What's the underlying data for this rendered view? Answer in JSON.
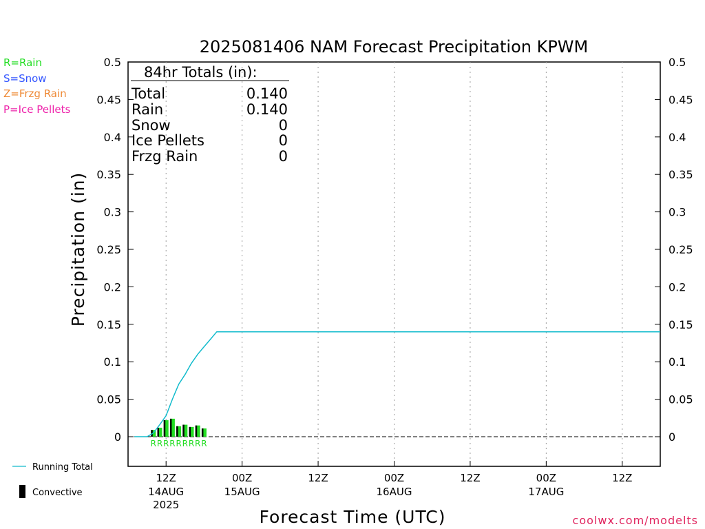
{
  "chart_data": {
    "type": "bar",
    "title": "2025081406 NAM Forecast Precipitation KPWM",
    "xlabel": "Forecast Time (UTC)",
    "ylabel": "Precipitation (in)",
    "ylim": [
      -0.04,
      0.5
    ],
    "y_ticks": [
      "0.5",
      "0.45",
      "0.4",
      "0.35",
      "0.3",
      "0.25",
      "0.2",
      "0.15",
      "0.1",
      "0.05",
      "0"
    ],
    "x_ticks": [
      {
        "label": "12Z",
        "date": "14AUG",
        "year": "2025",
        "hour": 12
      },
      {
        "label": "00Z",
        "date": "15AUG",
        "year": "",
        "hour": 24
      },
      {
        "label": "12Z",
        "date": "",
        "year": "",
        "hour": 36
      },
      {
        "label": "00Z",
        "date": "16AUG",
        "year": "",
        "hour": 48
      },
      {
        "label": "12Z",
        "date": "",
        "year": "",
        "hour": 60
      },
      {
        "label": "00Z",
        "date": "17AUG",
        "year": "",
        "hour": 72
      },
      {
        "label": "12Z",
        "date": "",
        "year": "",
        "hour": 84
      }
    ],
    "x_range_hours": [
      6,
      90
    ],
    "bars": [
      {
        "hour": 10,
        "total": 0.009,
        "convective": 0.004,
        "type": "R"
      },
      {
        "hour": 11,
        "total": 0.012,
        "convective": 0.004,
        "type": "R"
      },
      {
        "hour": 12,
        "total": 0.022,
        "convective": 0.01,
        "type": "R"
      },
      {
        "hour": 13,
        "total": 0.024,
        "convective": 0.012,
        "type": "R"
      },
      {
        "hour": 14,
        "total": 0.014,
        "convective": 0.005,
        "type": "R"
      },
      {
        "hour": 15,
        "total": 0.016,
        "convective": 0.006,
        "type": "R"
      },
      {
        "hour": 16,
        "total": 0.013,
        "convective": 0.005,
        "type": "R"
      },
      {
        "hour": 17,
        "total": 0.015,
        "convective": 0.006,
        "type": "R"
      },
      {
        "hour": 18,
        "total": 0.011,
        "convective": 0.004,
        "type": "R"
      }
    ],
    "running_total": [
      [
        7,
        0
      ],
      [
        9,
        0
      ],
      [
        10,
        0.005
      ],
      [
        11,
        0.016
      ],
      [
        12,
        0.028
      ],
      [
        13,
        0.05
      ],
      [
        14,
        0.07
      ],
      [
        15,
        0.083
      ],
      [
        16,
        0.098
      ],
      [
        17,
        0.11
      ],
      [
        18,
        0.12
      ],
      [
        19,
        0.13
      ],
      [
        20,
        0.14
      ],
      [
        90,
        0.14
      ]
    ],
    "grid": "vertical dotted at 12-hour ticks",
    "colors": {
      "rain": "#22dd22",
      "snow": "#3355ff",
      "frzg": "#ee8833",
      "ice": "#ee22aa",
      "running_total": "#11bbcc",
      "convective": "#000000",
      "credit": "#e0245e"
    }
  },
  "chart": {
    "title": "2025081406 NAM Forecast Precipitation KPWM",
    "ylabel": "Precipitation (in)",
    "xlabel": "Forecast Time (UTC)",
    "credit": "coolwx.com/modelts"
  },
  "precip_type_legend": [
    {
      "text": "R=Rain",
      "color": "#22dd22"
    },
    {
      "text": "S=Snow",
      "color": "#3355ff"
    },
    {
      "text": "Z=Frzg Rain",
      "color": "#ee8833"
    },
    {
      "text": "P=Ice Pellets",
      "color": "#ee22aa"
    }
  ],
  "totals_box": {
    "heading": "84hr Totals (in):",
    "rows": [
      {
        "label": "Total",
        "value": "0.140"
      },
      {
        "label": "Rain",
        "value": "0.140"
      },
      {
        "label": "Snow",
        "value": "0"
      },
      {
        "label": "Ice Pellets",
        "value": "0"
      },
      {
        "label": "Frzg Rain",
        "value": "0"
      }
    ]
  },
  "series_legend": {
    "running_total": "Running Total",
    "convective": "Convective"
  }
}
